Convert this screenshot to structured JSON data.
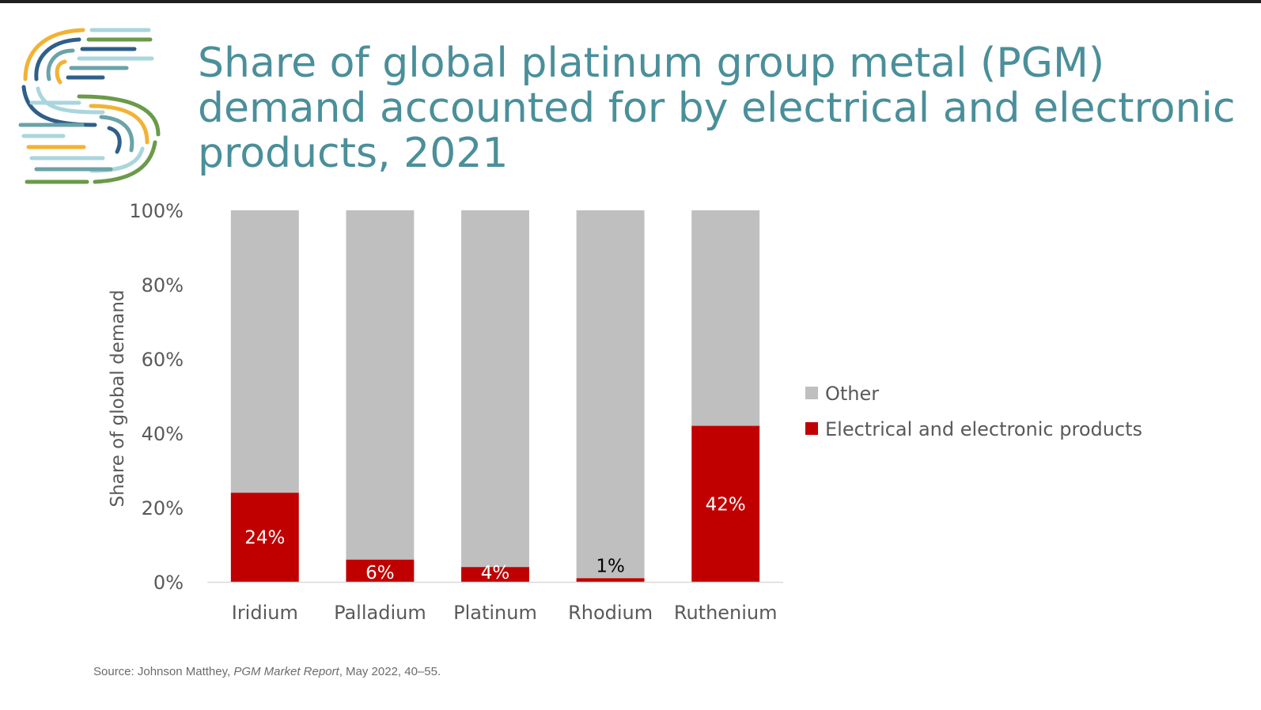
{
  "slide": {
    "title_lines": [
      "Share of global platinum group metal (PGM)",
      "demand accounted for by electrical and electronic",
      "products, 2021"
    ],
    "source_prefix": "Source: Johnson Matthey, ",
    "source_report": "PGM Market Report",
    "source_suffix": ", May 2022, 40–55."
  },
  "logo": {
    "icon": "striped-s-logo",
    "colors": [
      "#f2b233",
      "#2e5f8a",
      "#6aa3a8",
      "#a9d6dc",
      "#6a9a4a"
    ]
  },
  "chart_data": {
    "type": "bar",
    "stacked": true,
    "percent_stacked": true,
    "title": "Share of global platinum group metal (PGM) demand accounted for by electrical and electronic products, 2021",
    "ylabel": "Share of global demand",
    "xlabel": "",
    "ylim": [
      0,
      100
    ],
    "yticks": [
      "0%",
      "20%",
      "40%",
      "60%",
      "80%",
      "100%"
    ],
    "categories": [
      "Iridium",
      "Palladium",
      "Platinum",
      "Rhodium",
      "Ruthenium"
    ],
    "series": [
      {
        "name": "Electrical and electronic products",
        "color": "#c00000",
        "values": [
          24,
          6,
          4,
          1,
          42
        ],
        "labels": [
          "24%",
          "6%",
          "4%",
          "1%",
          "42%"
        ]
      },
      {
        "name": "Other",
        "color": "#bfbfbf",
        "values": [
          76,
          94,
          96,
          99,
          58
        ]
      }
    ],
    "legend": {
      "position": "right",
      "order": [
        "Other",
        "Electrical and electronic products"
      ]
    },
    "grid": false
  }
}
